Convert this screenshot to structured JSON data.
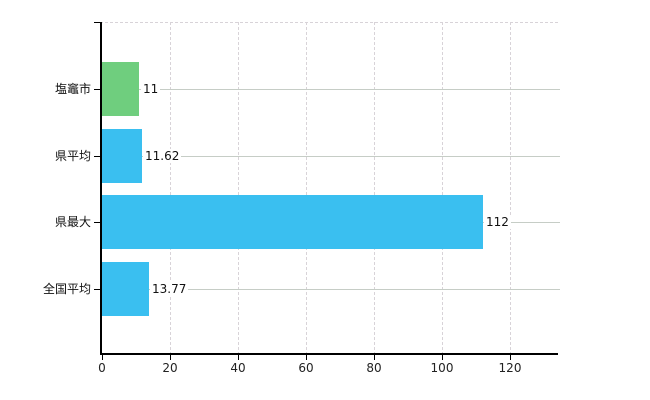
{
  "chart_data": {
    "type": "bar",
    "orientation": "horizontal",
    "title": "",
    "xlabel": "",
    "ylabel": "",
    "categories": [
      "塩竈市",
      "県平均",
      "県最大",
      "全国平均"
    ],
    "values": [
      11,
      11.62,
      112,
      13.77
    ],
    "value_labels": [
      "11",
      "11.62",
      "112",
      "13.77"
    ],
    "bar_colors": [
      "#6fce7e",
      "#3abff0",
      "#3abff0",
      "#3abff0"
    ],
    "x_ticks": [
      0,
      20,
      40,
      60,
      80,
      100,
      120
    ],
    "x_tick_labels": [
      "0",
      "20",
      "40",
      "60",
      "80",
      "100",
      "120"
    ],
    "xlim": [
      0,
      135
    ],
    "grid": true,
    "legend": false,
    "colors": {
      "background": "#ffffff",
      "axis": "#000000",
      "horizontal_gridline": "#c6cdc6",
      "vertical_gridline": "#d8d3d8",
      "plot_top_border": "#d8d3d8",
      "category_label_text": "#111111",
      "value_label_text": "#111111",
      "tick_label_text": "#222222"
    }
  }
}
